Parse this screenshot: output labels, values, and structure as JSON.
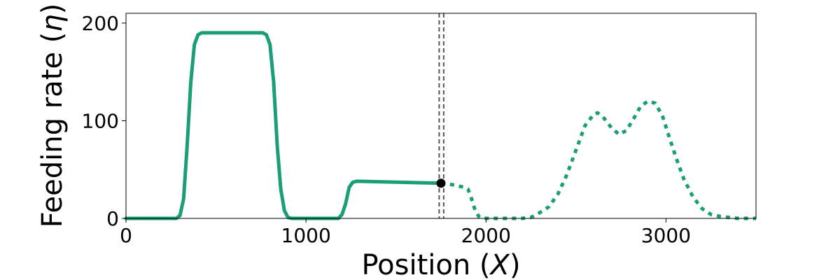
{
  "chart_data": {
    "type": "line",
    "xlabel": "Position",
    "xlabel_var": "X",
    "ylabel": "Feeding rate",
    "ylabel_var": "η",
    "xlim": [
      0,
      3500
    ],
    "ylim": [
      0,
      210
    ],
    "xticks": [
      0,
      1000,
      2000,
      3000
    ],
    "yticks": [
      0,
      100,
      200
    ],
    "grid": false,
    "colors": {
      "series": "#1b9e77",
      "marker": "#000000",
      "vline": "#555555"
    },
    "series": [
      {
        "style": "solid",
        "x": [
          0,
          280,
          300,
          320,
          340,
          360,
          380,
          400,
          420,
          440,
          760,
          780,
          800,
          820,
          840,
          860,
          880,
          900,
          920,
          1180,
          1200,
          1220,
          1240,
          1260,
          1280,
          1300,
          1750
        ],
        "y": [
          0,
          0,
          3,
          20,
          75,
          140,
          178,
          188,
          190,
          190,
          190,
          188,
          178,
          140,
          75,
          30,
          8,
          1,
          0,
          0,
          4,
          15,
          32,
          37,
          38,
          38,
          36
        ]
      },
      {
        "style": "dotted",
        "x": [
          1750,
          1800,
          1850,
          1880,
          1900,
          1920,
          1940,
          1960,
          1980,
          2000,
          2050,
          2100,
          2150,
          2200,
          2250,
          2300,
          2350,
          2400,
          2450,
          2500,
          2550,
          2600,
          2620,
          2650,
          2700,
          2740,
          2780,
          2820,
          2860,
          2900,
          2940,
          2980,
          3020,
          3060,
          3100,
          3150,
          3200,
          3250,
          3300,
          3350,
          3400,
          3450,
          3500
        ],
        "y": [
          36,
          35,
          33,
          32,
          30,
          20,
          8,
          2,
          0,
          0,
          0,
          0,
          0,
          0,
          1,
          6,
          12,
          25,
          45,
          70,
          95,
          107,
          108,
          104,
          92,
          86,
          90,
          102,
          115,
          120,
          118,
          105,
          82,
          60,
          40,
          22,
          10,
          4,
          2,
          1,
          0,
          0,
          0
        ]
      }
    ],
    "marker": {
      "x": 1750,
      "y": 36
    },
    "vlines": [
      1740,
      1765
    ]
  }
}
